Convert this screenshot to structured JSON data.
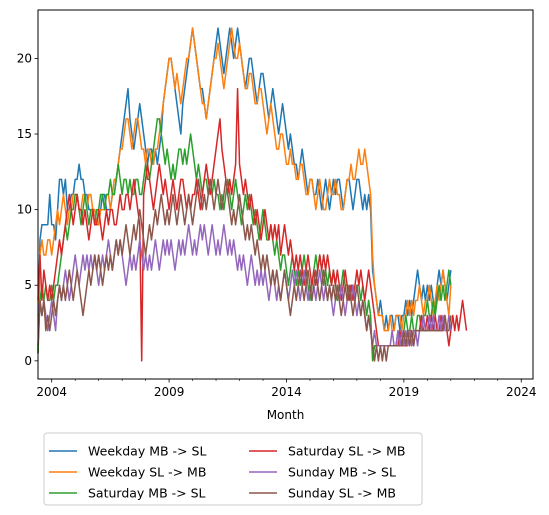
{
  "chart_data": {
    "type": "line",
    "title": "",
    "xlabel": "Month",
    "ylabel": "",
    "xlim": [
      "2003-06",
      "2024-07"
    ],
    "ylim": [
      -1.2,
      23.2
    ],
    "x_tick_labels": [
      "2004",
      "2009",
      "2014",
      "2019",
      "2024"
    ],
    "x_tick_years": [
      2004,
      2009,
      2014,
      2019,
      2024
    ],
    "y_ticks": [
      0,
      5,
      10,
      15,
      20
    ],
    "grid": false,
    "legend_placement": "below plot, two columns",
    "start_month": "2003-06",
    "series": [
      {
        "name": "Weekday MB -> SL",
        "color": "#1f77b4",
        "values": [
          0.5,
          8,
          9,
          9,
          9,
          9,
          11,
          9,
          9,
          8,
          10,
          12,
          12,
          11,
          12,
          10,
          10,
          11,
          11,
          12,
          12,
          13,
          12,
          12,
          11,
          11,
          10,
          10,
          10,
          10,
          9,
          9,
          10,
          11,
          11,
          10,
          10,
          10,
          11,
          11,
          12,
          13,
          14,
          15,
          16,
          17,
          18,
          16,
          15,
          14,
          15,
          16,
          17,
          16,
          15,
          14,
          13,
          14,
          14,
          13,
          14,
          13,
          14,
          15,
          17,
          18,
          19,
          20,
          20,
          19,
          18,
          17,
          16,
          15,
          17,
          18,
          19,
          20,
          21,
          22,
          21,
          20,
          19,
          18,
          18,
          17,
          16,
          17,
          18,
          19,
          20,
          21,
          22,
          21,
          20,
          19,
          20,
          21,
          22,
          21,
          20,
          21,
          22,
          21,
          20,
          19,
          18,
          19,
          20,
          20,
          19,
          18,
          17,
          18,
          19,
          19,
          18,
          17,
          16,
          17,
          18,
          17,
          16,
          15,
          16,
          17,
          16,
          15,
          14,
          15,
          14,
          13,
          13,
          12,
          13,
          14,
          13,
          12,
          11,
          12,
          12,
          11,
          11,
          12,
          11,
          10,
          11,
          12,
          11,
          10,
          11,
          12,
          11,
          12,
          12,
          11,
          10,
          11,
          12,
          12,
          11,
          10,
          11,
          12,
          12,
          11,
          10,
          11,
          10,
          11,
          10,
          6,
          5,
          4,
          3,
          4,
          3,
          2,
          3,
          2,
          3,
          3,
          2,
          3,
          3,
          2,
          3,
          3,
          4,
          3,
          4,
          3,
          4,
          5,
          6,
          5,
          4,
          5,
          4,
          5,
          4,
          5,
          4,
          3,
          5,
          6,
          5,
          6,
          5,
          4,
          5,
          6
        ]
      },
      {
        "name": "Weekday SL -> MB",
        "color": "#ff7f0e",
        "values": [
          0.5,
          7,
          8,
          7,
          7,
          8,
          8,
          7,
          8,
          9,
          10,
          9,
          10,
          11,
          10,
          9,
          10,
          10,
          11,
          11,
          11,
          10,
          10,
          11,
          11,
          10,
          11,
          11,
          10,
          10,
          9,
          9,
          10,
          10,
          10,
          11,
          11,
          10,
          11,
          12,
          12,
          13,
          14,
          14,
          15,
          16,
          16,
          15,
          14,
          15,
          16,
          16,
          15,
          14,
          14,
          13,
          14,
          14,
          13,
          13,
          14,
          14,
          15,
          16,
          17,
          18,
          19,
          20,
          20,
          19,
          18,
          19,
          18,
          17,
          18,
          19,
          20,
          20,
          21,
          22,
          21,
          20,
          19,
          18,
          17,
          17,
          16,
          17,
          18,
          19,
          20,
          20,
          21,
          20,
          19,
          18,
          19,
          20,
          21,
          22,
          21,
          20,
          20,
          21,
          20,
          19,
          18,
          18,
          19,
          19,
          18,
          17,
          17,
          18,
          18,
          17,
          16,
          15,
          16,
          17,
          16,
          15,
          14,
          14,
          15,
          15,
          14,
          13,
          13,
          14,
          13,
          13,
          12,
          12,
          13,
          13,
          12,
          11,
          11,
          12,
          12,
          11,
          10,
          11,
          12,
          11,
          10,
          10,
          11,
          12,
          11,
          11,
          12,
          11,
          11,
          10,
          10,
          11,
          12,
          12,
          13,
          12,
          12,
          13,
          14,
          13,
          13,
          14,
          13,
          12,
          11,
          7,
          5,
          4,
          3,
          3,
          3,
          2,
          2,
          2,
          3,
          2,
          2,
          3,
          3,
          3,
          2,
          3,
          3,
          4,
          3,
          4,
          3,
          4,
          4,
          5,
          4,
          3,
          4,
          4,
          5,
          4,
          3,
          4,
          5,
          4,
          5,
          6,
          5,
          4,
          3,
          5
        ]
      },
      {
        "name": "Saturday MB -> SL",
        "color": "#2ca02c",
        "values": [
          0.5,
          4,
          5,
          4,
          5,
          4,
          4,
          5,
          4,
          5,
          5,
          6,
          7,
          8,
          9,
          8,
          9,
          10,
          10,
          11,
          11,
          10,
          9,
          10,
          11,
          10,
          9,
          10,
          10,
          9,
          10,
          10,
          11,
          11,
          10,
          11,
          11,
          12,
          11,
          11,
          12,
          13,
          12,
          11,
          12,
          12,
          11,
          12,
          11,
          11,
          12,
          12,
          11,
          11,
          12,
          13,
          12,
          12,
          13,
          14,
          15,
          16,
          16,
          15,
          14,
          13,
          14,
          13,
          12,
          13,
          12,
          13,
          14,
          14,
          13,
          14,
          13,
          14,
          15,
          14,
          13,
          12,
          13,
          12,
          11,
          12,
          12,
          11,
          12,
          11,
          12,
          11,
          11,
          10,
          11,
          10,
          11,
          12,
          11,
          10,
          11,
          12,
          11,
          10,
          9,
          10,
          11,
          10,
          11,
          10,
          9,
          10,
          9,
          8,
          9,
          10,
          9,
          8,
          8,
          9,
          8,
          7,
          8,
          7,
          6,
          7,
          7,
          6,
          5,
          6,
          7,
          6,
          5,
          6,
          5,
          6,
          7,
          6,
          5,
          4,
          5,
          6,
          7,
          6,
          7,
          6,
          5,
          6,
          5,
          6,
          5,
          6,
          5,
          4,
          5,
          5,
          6,
          5,
          5,
          4,
          5,
          5,
          4,
          5,
          5,
          4,
          5,
          4,
          3,
          4,
          3,
          0,
          1,
          1,
          1,
          1,
          1,
          1,
          1,
          1,
          1,
          1,
          1,
          1,
          2,
          1,
          1,
          2,
          3,
          2,
          2,
          3,
          2,
          2,
          3,
          3,
          2,
          3,
          3,
          4,
          3,
          3,
          4,
          3,
          4,
          5,
          4,
          5,
          4,
          5,
          6,
          5
        ]
      },
      {
        "name": "Saturday SL -> MB",
        "color": "#d62728",
        "values": [
          4,
          7,
          4,
          6,
          5,
          4,
          5,
          4,
          5,
          6,
          7,
          8,
          7,
          8,
          9,
          10,
          11,
          10,
          9,
          10,
          11,
          10,
          10,
          9,
          10,
          9,
          8,
          9,
          10,
          9,
          9,
          10,
          9,
          8,
          9,
          10,
          9,
          10,
          10,
          9,
          9,
          10,
          11,
          10,
          10,
          11,
          11,
          10,
          11,
          12,
          11,
          10,
          9,
          0,
          11,
          12,
          13,
          12,
          11,
          10,
          11,
          12,
          13,
          12,
          11,
          12,
          11,
          10,
          11,
          12,
          11,
          10,
          11,
          12,
          12,
          11,
          10,
          11,
          10,
          11,
          11,
          12,
          11,
          10,
          11,
          12,
          13,
          12,
          11,
          12,
          13,
          14,
          15,
          16,
          14,
          13,
          12,
          11,
          12,
          11,
          12,
          13,
          18,
          13,
          12,
          11,
          12,
          11,
          10,
          11,
          10,
          9,
          10,
          9,
          8,
          9,
          10,
          9,
          8,
          9,
          8,
          9,
          8,
          9,
          7,
          8,
          9,
          8,
          7,
          8,
          7,
          6,
          7,
          6,
          7,
          6,
          5,
          6,
          7,
          6,
          5,
          6,
          5,
          6,
          7,
          6,
          7,
          6,
          7,
          6,
          5,
          6,
          5,
          6,
          5,
          4,
          5,
          6,
          5,
          4,
          5,
          4,
          5,
          6,
          5,
          6,
          5,
          4,
          5,
          6,
          5,
          4,
          3,
          2,
          1,
          1,
          1,
          1,
          1,
          1,
          1,
          1,
          1,
          1,
          1,
          2,
          1,
          1,
          1,
          1,
          2,
          2,
          1,
          2,
          2,
          2,
          3,
          2,
          2,
          3,
          2,
          3,
          2,
          3,
          2,
          2,
          3,
          2,
          3,
          2,
          1,
          2,
          3,
          2,
          3,
          2,
          3,
          4,
          3,
          2
        ]
      },
      {
        "name": "Sunday MB -> SL",
        "color": "#9467bd",
        "values": [
          3,
          4,
          3,
          4,
          3,
          2,
          3,
          4,
          3,
          2,
          4,
          5,
          4,
          5,
          6,
          5,
          4,
          5,
          6,
          7,
          6,
          5,
          6,
          7,
          6,
          7,
          6,
          7,
          6,
          7,
          6,
          5,
          6,
          7,
          6,
          7,
          8,
          7,
          6,
          7,
          8,
          7,
          8,
          7,
          6,
          5,
          6,
          7,
          6,
          7,
          6,
          7,
          8,
          7,
          6,
          7,
          6,
          7,
          6,
          7,
          8,
          7,
          6,
          7,
          8,
          7,
          8,
          7,
          8,
          7,
          6,
          7,
          8,
          7,
          8,
          7,
          8,
          9,
          8,
          7,
          8,
          7,
          8,
          9,
          8,
          9,
          8,
          7,
          8,
          9,
          8,
          7,
          8,
          7,
          8,
          9,
          8,
          7,
          8,
          7,
          8,
          7,
          6,
          7,
          6,
          7,
          6,
          5,
          6,
          7,
          6,
          5,
          6,
          5,
          6,
          5,
          6,
          5,
          4,
          5,
          6,
          5,
          4,
          5,
          4,
          5,
          6,
          5,
          4,
          5,
          6,
          5,
          6,
          5,
          4,
          5,
          6,
          5,
          4,
          5,
          4,
          5,
          4,
          5,
          6,
          5,
          4,
          5,
          4,
          5,
          4,
          3,
          4,
          5,
          4,
          5,
          4,
          3,
          4,
          5,
          4,
          5,
          4,
          3,
          4,
          3,
          4,
          3,
          2,
          3,
          2,
          1,
          2,
          1,
          1,
          1,
          1,
          1,
          1,
          1,
          1,
          2,
          1,
          1,
          2,
          1,
          2,
          1,
          2,
          1,
          2,
          1,
          2,
          2,
          1,
          2,
          2,
          3,
          2,
          2,
          3,
          2,
          3,
          2,
          2,
          3,
          2,
          3,
          2,
          2,
          3,
          2
        ]
      },
      {
        "name": "Sunday SL -> MB",
        "color": "#8c564b",
        "values": [
          1,
          4,
          3,
          4,
          2,
          3,
          2,
          3,
          4,
          3,
          4,
          5,
          4,
          5,
          4,
          5,
          6,
          5,
          4,
          5,
          6,
          5,
          4,
          3,
          4,
          5,
          6,
          5,
          6,
          7,
          6,
          7,
          6,
          5,
          6,
          7,
          6,
          7,
          6,
          7,
          8,
          7,
          8,
          7,
          8,
          9,
          8,
          7,
          8,
          9,
          8,
          9,
          10,
          9,
          8,
          7,
          8,
          9,
          8,
          9,
          10,
          9,
          10,
          11,
          10,
          9,
          10,
          9,
          10,
          11,
          10,
          9,
          10,
          11,
          10,
          9,
          10,
          11,
          10,
          9,
          10,
          11,
          12,
          11,
          10,
          11,
          10,
          11,
          12,
          11,
          10,
          11,
          12,
          11,
          10,
          11,
          12,
          11,
          10,
          9,
          10,
          9,
          10,
          11,
          10,
          9,
          8,
          9,
          8,
          9,
          8,
          7,
          8,
          7,
          6,
          7,
          6,
          7,
          6,
          5,
          6,
          5,
          6,
          5,
          4,
          5,
          6,
          5,
          4,
          3,
          4,
          5,
          4,
          5,
          6,
          5,
          4,
          5,
          6,
          5,
          4,
          5,
          6,
          5,
          4,
          5,
          6,
          5,
          4,
          5,
          4,
          5,
          4,
          5,
          4,
          3,
          4,
          5,
          4,
          5,
          4,
          3,
          4,
          5,
          4,
          3,
          4,
          3,
          2,
          3,
          2,
          1,
          0,
          1,
          0,
          1,
          0,
          1,
          0,
          1,
          1,
          1,
          1,
          1,
          1,
          1,
          1,
          2,
          1,
          2,
          1,
          2,
          1,
          2,
          2,
          2,
          2,
          2,
          2,
          2,
          2,
          2,
          2,
          2,
          2,
          2,
          2,
          2,
          3,
          2,
          2,
          3
        ]
      }
    ]
  }
}
